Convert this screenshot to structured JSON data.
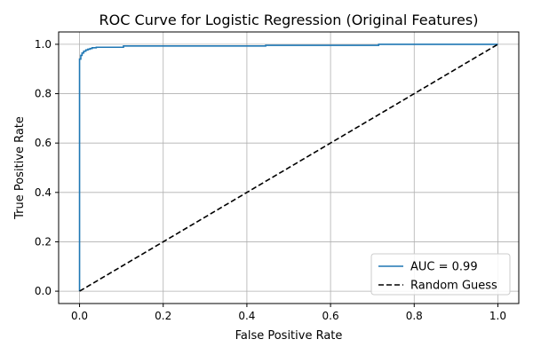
{
  "chart_data": {
    "type": "line",
    "title": "ROC Curve for Logistic Regression (Original Features)",
    "xlabel": "False Positive Rate",
    "ylabel": "True Positive Rate",
    "xlim": [
      -0.05,
      1.05
    ],
    "ylim": [
      -0.05,
      1.05
    ],
    "xticks": [
      0.0,
      0.2,
      0.4,
      0.6,
      0.8,
      1.0
    ],
    "yticks": [
      0.0,
      0.2,
      0.4,
      0.6,
      0.8,
      1.0
    ],
    "xtick_labels": [
      "0.0",
      "0.2",
      "0.4",
      "0.6",
      "0.8",
      "1.0"
    ],
    "ytick_labels": [
      "0.0",
      "0.2",
      "0.4",
      "0.6",
      "0.8",
      "1.0"
    ],
    "grid": true,
    "legend_position": "lower-right",
    "series": [
      {
        "name": "AUC = 0.99",
        "color": "#1f77b4",
        "style": "solid",
        "step": true,
        "x": [
          0.0,
          0.0,
          0.0,
          0.003,
          0.003,
          0.006,
          0.006,
          0.01,
          0.01,
          0.015,
          0.015,
          0.02,
          0.02,
          0.025,
          0.025,
          0.03,
          0.03,
          0.04,
          0.04,
          0.105,
          0.105,
          0.445,
          0.445,
          0.715,
          0.715,
          1.0
        ],
        "y": [
          0.0,
          0.5,
          0.94,
          0.94,
          0.955,
          0.955,
          0.965,
          0.965,
          0.972,
          0.972,
          0.977,
          0.977,
          0.98,
          0.98,
          0.983,
          0.983,
          0.986,
          0.986,
          0.988,
          0.988,
          0.993,
          0.993,
          0.996,
          0.996,
          1.0,
          1.0
        ]
      },
      {
        "name": "Random Guess",
        "color": "#000000",
        "style": "dashed",
        "x": [
          0.0,
          1.0
        ],
        "y": [
          0.0,
          1.0
        ]
      }
    ]
  }
}
